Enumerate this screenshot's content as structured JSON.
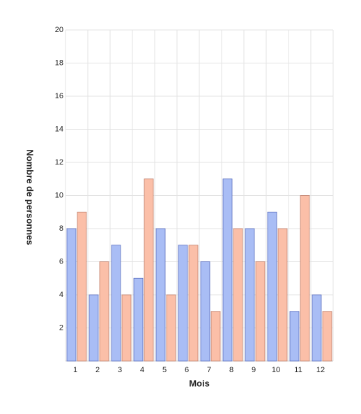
{
  "chart_data": {
    "type": "bar",
    "x_label": "Mois",
    "y_label": "Nombre de personnes",
    "categories": [
      "1",
      "2",
      "3",
      "4",
      "5",
      "6",
      "7",
      "8",
      "9",
      "10",
      "11",
      "12"
    ],
    "series": [
      {
        "color": "#a9bdf5",
        "values": [
          8,
          4,
          7,
          5,
          8,
          7,
          6,
          11,
          8,
          9,
          3,
          4
        ]
      },
      {
        "color": "#fbbfa8",
        "values": [
          9,
          6,
          4,
          11,
          4,
          7,
          3,
          8,
          6,
          8,
          10,
          3
        ]
      }
    ],
    "ylim": [
      0,
      20
    ],
    "yticks": [
      2,
      4,
      6,
      8,
      10,
      12,
      14,
      16,
      18,
      20
    ],
    "grid": true
  }
}
